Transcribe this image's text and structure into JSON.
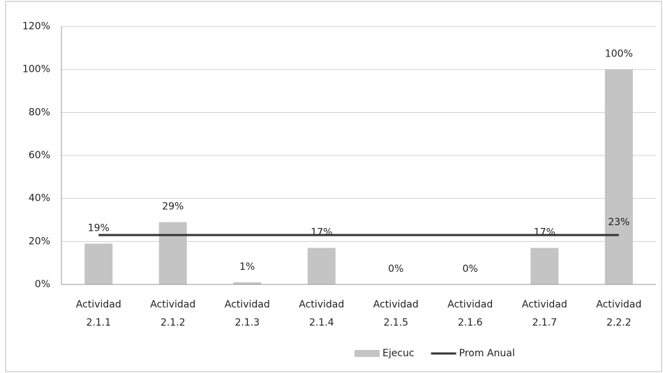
{
  "chart_data": {
    "type": "bar",
    "categories": [
      "Actividad 2.1.1",
      "Actividad 2.1.2",
      "Actividad 2.1.3",
      "Actividad 2.1.4",
      "Actividad 2.1.5",
      "Actividad 2.1.6",
      "Actividad 2.1.7",
      "Actividad 2.2.2"
    ],
    "series": [
      {
        "name": "Ejecuc",
        "type": "bar",
        "color": "#c4c4c4",
        "values": [
          19,
          29,
          1,
          17,
          0,
          0,
          17,
          100
        ],
        "value_labels": [
          "19%",
          "29%",
          "1%",
          "17%",
          "0%",
          "0%",
          "17%",
          "100%"
        ]
      },
      {
        "name": "Prom Anual",
        "type": "line",
        "color": "#333333",
        "values": [
          23,
          23,
          23,
          23,
          23,
          23,
          23,
          23
        ],
        "value_labels": [
          null,
          null,
          null,
          null,
          null,
          null,
          null,
          "23%"
        ]
      }
    ],
    "ylim": [
      0,
      120
    ],
    "yticks": [
      {
        "value": 0,
        "label": "0%"
      },
      {
        "value": 20,
        "label": "20%"
      },
      {
        "value": 40,
        "label": "40%"
      },
      {
        "value": 60,
        "label": "60%"
      },
      {
        "value": 80,
        "label": "80%"
      },
      {
        "value": 100,
        "label": "100%"
      },
      {
        "value": 120,
        "label": "120%"
      }
    ],
    "grid": true,
    "legend": "bottom"
  }
}
